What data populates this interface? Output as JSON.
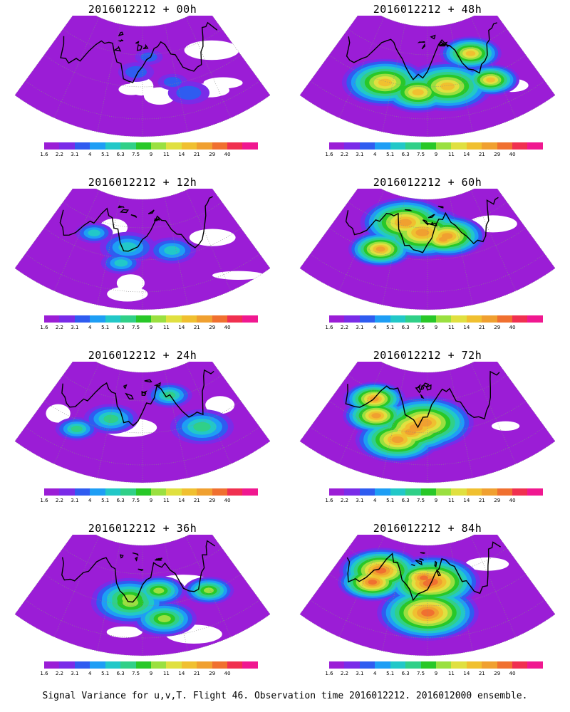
{
  "panels": [
    {
      "title": "2016012212 + 00h",
      "lead_hours": 0,
      "intensity": 0.2
    },
    {
      "title": "2016012212 + 48h",
      "lead_hours": 48,
      "intensity": 0.75
    },
    {
      "title": "2016012212 + 12h",
      "lead_hours": 12,
      "intensity": 0.35
    },
    {
      "title": "2016012212 + 60h",
      "lead_hours": 60,
      "intensity": 0.8
    },
    {
      "title": "2016012212 + 24h",
      "lead_hours": 24,
      "intensity": 0.45
    },
    {
      "title": "2016012212 + 72h",
      "lead_hours": 72,
      "intensity": 0.85
    },
    {
      "title": "2016012212 + 36h",
      "lead_hours": 36,
      "intensity": 0.6
    },
    {
      "title": "2016012212 + 84h",
      "lead_hours": 84,
      "intensity": 0.9
    }
  ],
  "colorbar": {
    "labels": [
      "1.6",
      "2.2",
      "3.1",
      "4",
      "5.1",
      "6.3",
      "7.5",
      "9",
      "11",
      "14",
      "21",
      "29",
      "40"
    ],
    "colors": [
      "#9b1dd6",
      "#7a2be8",
      "#2f5cf0",
      "#1e9ef5",
      "#22c8c8",
      "#30d088",
      "#28c828",
      "#9ae040",
      "#e0e040",
      "#f0c030",
      "#f0a030",
      "#f07030",
      "#f03050",
      "#f01890"
    ]
  },
  "footer": "Signal Variance for u,v,T. Flight 46. Observation time 2016012212. 2016012000 ensemble."
}
